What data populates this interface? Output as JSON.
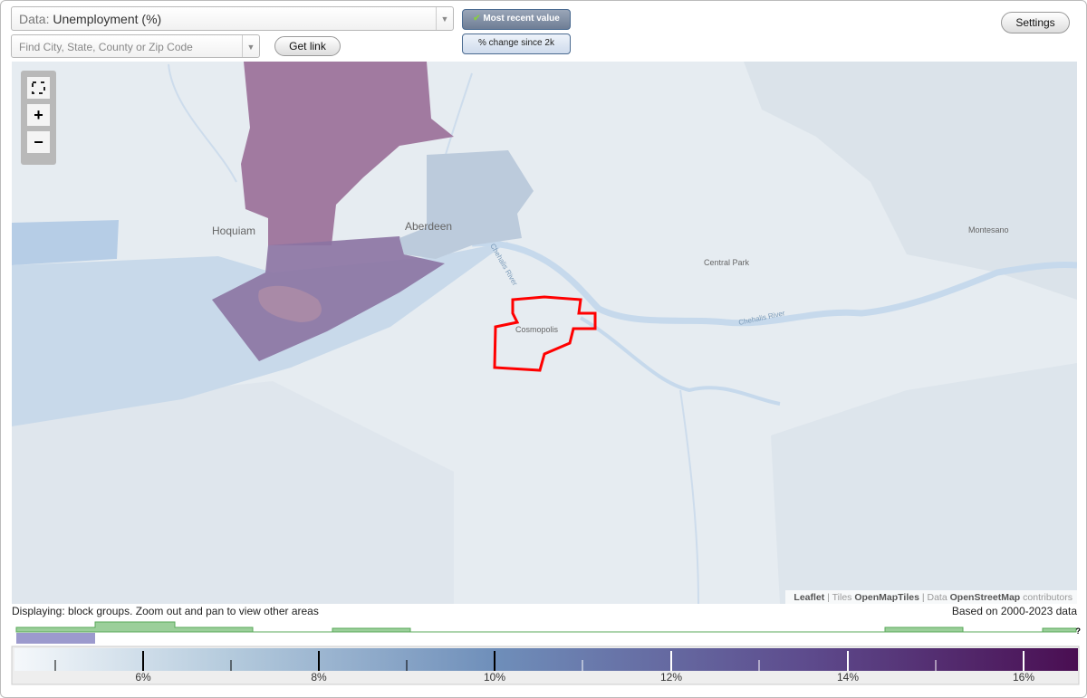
{
  "toolbar": {
    "data_label": "Data:",
    "data_value": "Unemployment (%)",
    "search_placeholder": "Find City, State, County or Zip Code",
    "get_link": "Get link",
    "most_recent": "Most recent value",
    "pct_change": "% change since 2k",
    "settings": "Settings"
  },
  "map": {
    "labels": [
      "Hoquiam",
      "Aberdeen",
      "Central Park",
      "Montesano",
      "Cosmopolis",
      "Chehalis River",
      "Chehalis River"
    ],
    "zoom_in": "+",
    "zoom_out": "−",
    "attribution": {
      "leaflet": "Leaflet",
      "sep1": "|",
      "tiles": "Tiles",
      "omt": "OpenMapTiles",
      "sep2": "|",
      "data": "Data",
      "osm": "OpenStreetMap",
      "contributors": "contributors"
    }
  },
  "status": {
    "displaying": "Displaying: block groups. Zoom out and pan to view other areas",
    "based_on": "Based on 2000-2023 data",
    "help": "?"
  },
  "legend": {
    "labels": [
      "6%",
      "8%",
      "10%",
      "12%",
      "14%",
      "16%"
    ]
  }
}
